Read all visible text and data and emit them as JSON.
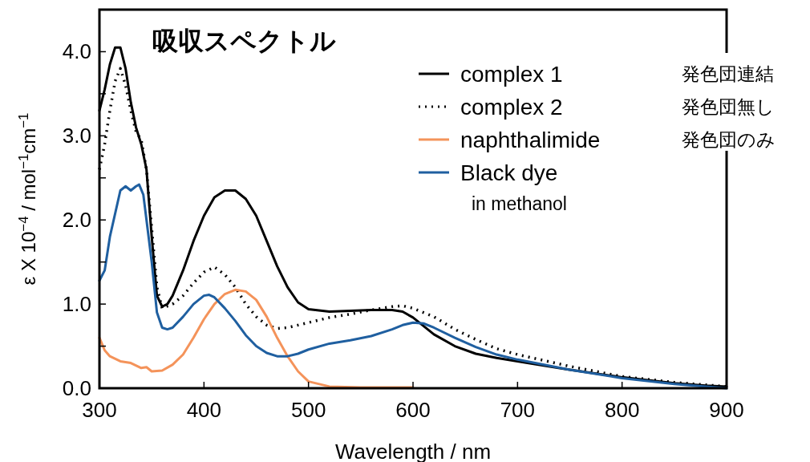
{
  "chart_data": {
    "type": "line",
    "title": "吸収スペクトル",
    "xlabel": "Wavelength / nm",
    "ylabel": "ε X 10$^{−4}$ / mol$^{−1}$cm$^{−1}$",
    "annotations": [
      "発色団連結",
      "発色団無し",
      "発色団のみ",
      "in methanol"
    ],
    "xlim": [
      300,
      900
    ],
    "xticks": [
      300,
      400,
      500,
      600,
      700,
      800,
      900
    ],
    "ylim": [
      0,
      4.5
    ],
    "yticks": [
      {
        "value": 0,
        "label": "0.0"
      },
      {
        "value": 0.5,
        "label": null
      },
      {
        "value": 1,
        "label": "1.0"
      },
      {
        "value": 1.5,
        "label": null
      },
      {
        "value": 2,
        "label": "2.0"
      },
      {
        "value": 2.5,
        "label": null
      },
      {
        "value": 3,
        "label": "3.0"
      },
      {
        "value": 3.5,
        "label": null
      },
      {
        "value": 4,
        "label": "4.0"
      }
    ],
    "grid": false,
    "legend": "top right",
    "series": [
      {
        "name": "complex 1",
        "color": "#000000",
        "line_style": "solid",
        "x": [
          300,
          305,
          310,
          315,
          320,
          325,
          330,
          335,
          340,
          345,
          350,
          355,
          360,
          365,
          370,
          380,
          390,
          400,
          410,
          420,
          430,
          440,
          450,
          460,
          470,
          480,
          490,
          500,
          520,
          540,
          560,
          580,
          590,
          600,
          610,
          620,
          640,
          660,
          680,
          700,
          750,
          800,
          850,
          880,
          900
        ],
        "values": [
          3.3,
          3.55,
          3.85,
          4.05,
          4.05,
          3.8,
          3.4,
          3.1,
          2.9,
          2.6,
          1.8,
          1.1,
          0.97,
          1.0,
          1.1,
          1.4,
          1.75,
          2.05,
          2.27,
          2.35,
          2.35,
          2.25,
          2.05,
          1.75,
          1.45,
          1.2,
          1.02,
          0.94,
          0.91,
          0.92,
          0.93,
          0.93,
          0.91,
          0.84,
          0.74,
          0.64,
          0.5,
          0.41,
          0.36,
          0.32,
          0.22,
          0.13,
          0.06,
          0.03,
          0.02
        ]
      },
      {
        "name": "complex 2",
        "color": "#000000",
        "line_style": "dotted",
        "x": [
          300,
          305,
          310,
          315,
          320,
          325,
          330,
          335,
          340,
          345,
          350,
          355,
          360,
          370,
          380,
          390,
          400,
          410,
          420,
          430,
          440,
          450,
          460,
          470,
          480,
          500,
          520,
          540,
          560,
          580,
          590,
          600,
          620,
          640,
          660,
          680,
          700,
          750,
          800,
          850,
          900
        ],
        "values": [
          2.6,
          2.9,
          3.3,
          3.65,
          3.8,
          3.6,
          3.3,
          3.05,
          2.95,
          2.6,
          1.9,
          1.2,
          0.95,
          1.0,
          1.1,
          1.25,
          1.38,
          1.44,
          1.35,
          1.2,
          1.0,
          0.85,
          0.75,
          0.71,
          0.72,
          0.78,
          0.84,
          0.88,
          0.93,
          0.97,
          0.98,
          0.95,
          0.85,
          0.7,
          0.58,
          0.47,
          0.4,
          0.26,
          0.14,
          0.07,
          0.02
        ]
      },
      {
        "name": "naphthalimide",
        "color": "#f4935a",
        "line_style": "solid",
        "x": [
          300,
          305,
          310,
          320,
          330,
          340,
          345,
          350,
          360,
          370,
          380,
          390,
          400,
          410,
          420,
          430,
          440,
          450,
          460,
          470,
          480,
          490,
          500,
          520,
          550,
          600
        ],
        "values": [
          0.6,
          0.45,
          0.38,
          0.32,
          0.3,
          0.24,
          0.25,
          0.2,
          0.21,
          0.28,
          0.4,
          0.6,
          0.82,
          1.0,
          1.12,
          1.17,
          1.15,
          1.05,
          0.85,
          0.6,
          0.38,
          0.2,
          0.08,
          0.02,
          0.01,
          0.01
        ]
      },
      {
        "name": "Black dye",
        "color": "#1f5fa0",
        "line_style": "solid",
        "x": [
          300,
          305,
          310,
          320,
          325,
          330,
          335,
          338,
          342,
          350,
          355,
          360,
          365,
          370,
          380,
          390,
          400,
          405,
          410,
          420,
          430,
          440,
          450,
          460,
          470,
          480,
          490,
          500,
          520,
          540,
          560,
          580,
          590,
          600,
          610,
          620,
          640,
          660,
          680,
          700,
          750,
          800,
          850,
          880,
          900
        ],
        "values": [
          1.28,
          1.4,
          1.8,
          2.35,
          2.4,
          2.35,
          2.4,
          2.42,
          2.3,
          1.5,
          0.9,
          0.72,
          0.7,
          0.72,
          0.85,
          1.0,
          1.1,
          1.11,
          1.08,
          0.95,
          0.8,
          0.63,
          0.5,
          0.42,
          0.38,
          0.38,
          0.41,
          0.46,
          0.53,
          0.57,
          0.62,
          0.7,
          0.75,
          0.78,
          0.77,
          0.72,
          0.6,
          0.49,
          0.4,
          0.34,
          0.22,
          0.12,
          0.05,
          0.02,
          0.0
        ]
      }
    ]
  }
}
